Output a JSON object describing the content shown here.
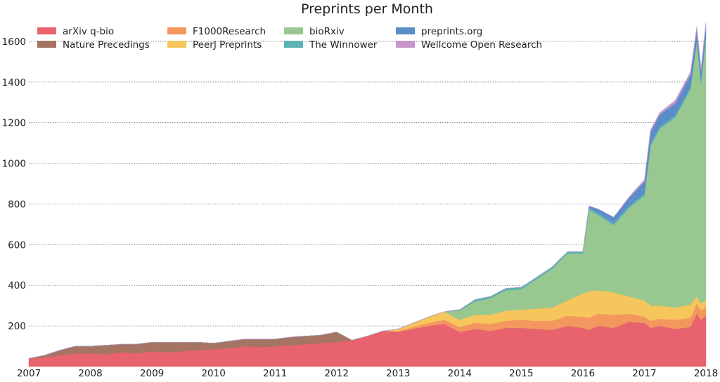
{
  "chart_data": {
    "type": "area",
    "stacked": true,
    "title": "Preprints per Month",
    "xlabel": "",
    "ylabel": "",
    "x_ticks": [
      "2007",
      "2008",
      "2009",
      "2010",
      "2011",
      "2012",
      "2013",
      "2014",
      "2015",
      "2016",
      "2017",
      "2018"
    ],
    "y_ticks": [
      "200",
      "400",
      "600",
      "800",
      "1000",
      "1200",
      "1400",
      "1600"
    ],
    "xlim": [
      2007.0,
      2018.0
    ],
    "ylim": [
      0,
      1700
    ],
    "grid": "horizontal dotted",
    "legend_position": "top-left",
    "x": [
      2007.0,
      2007.25,
      2007.5,
      2007.75,
      2008.0,
      2008.25,
      2008.5,
      2008.75,
      2009.0,
      2009.25,
      2009.5,
      2009.75,
      2010.0,
      2010.25,
      2010.5,
      2010.75,
      2011.0,
      2011.25,
      2011.5,
      2011.75,
      2012.0,
      2012.25,
      2012.5,
      2012.75,
      2013.0,
      2013.25,
      2013.5,
      2013.75,
      2014.0,
      2014.25,
      2014.5,
      2014.75,
      2015.0,
      2015.25,
      2015.5,
      2015.75,
      2016.0,
      2016.1,
      2016.25,
      2016.5,
      2016.75,
      2017.0,
      2017.1,
      2017.25,
      2017.5,
      2017.75,
      2017.85,
      2017.92,
      2018.0
    ],
    "series": [
      {
        "name": "arXiv q-bio",
        "color": "#e8636d",
        "values": [
          40,
          45,
          55,
          65,
          65,
          60,
          70,
          65,
          75,
          70,
          75,
          80,
          85,
          90,
          100,
          95,
          100,
          105,
          110,
          115,
          120,
          130,
          150,
          175,
          170,
          185,
          200,
          210,
          170,
          185,
          175,
          190,
          190,
          185,
          180,
          200,
          190,
          180,
          200,
          190,
          220,
          215,
          190,
          200,
          185,
          195,
          260,
          230,
          250
        ]
      },
      {
        "name": "Nature Precedings",
        "color": "#a57463",
        "values": [
          0,
          10,
          25,
          35,
          35,
          45,
          40,
          45,
          45,
          50,
          45,
          40,
          30,
          35,
          35,
          40,
          35,
          40,
          40,
          40,
          50,
          0,
          0,
          0,
          0,
          0,
          0,
          0,
          0,
          0,
          0,
          0,
          0,
          0,
          0,
          0,
          0,
          0,
          0,
          0,
          0,
          0,
          0,
          0,
          0,
          0,
          0,
          0,
          0
        ]
      },
      {
        "name": "F1000Research",
        "color": "#f4975f",
        "values": [
          0,
          0,
          0,
          0,
          0,
          0,
          0,
          0,
          0,
          0,
          0,
          0,
          0,
          0,
          0,
          0,
          0,
          0,
          0,
          0,
          0,
          0,
          0,
          0,
          5,
          10,
          15,
          20,
          25,
          30,
          35,
          35,
          40,
          40,
          45,
          50,
          55,
          60,
          60,
          65,
          40,
          30,
          35,
          35,
          45,
          45,
          50,
          45,
          45
        ]
      },
      {
        "name": "PeerJ Preprints",
        "color": "#f6c55b",
        "values": [
          0,
          0,
          0,
          0,
          0,
          0,
          0,
          0,
          0,
          0,
          0,
          0,
          0,
          0,
          0,
          0,
          0,
          0,
          0,
          0,
          0,
          0,
          0,
          0,
          10,
          20,
          30,
          40,
          35,
          40,
          45,
          50,
          50,
          60,
          65,
          75,
          115,
          130,
          115,
          110,
          85,
          80,
          75,
          65,
          60,
          65,
          35,
          35,
          30
        ]
      },
      {
        "name": "bioRxiv",
        "color": "#98c78f",
        "values": [
          0,
          0,
          0,
          0,
          0,
          0,
          0,
          0,
          0,
          0,
          0,
          0,
          0,
          0,
          0,
          0,
          0,
          0,
          0,
          0,
          0,
          0,
          0,
          0,
          0,
          0,
          0,
          0,
          45,
          65,
          80,
          100,
          100,
          145,
          190,
          230,
          195,
          400,
          370,
          330,
          435,
          515,
          785,
          870,
          935,
          1060,
          1250,
          1085,
          1290
        ]
      },
      {
        "name": "The Winnower",
        "color": "#5db3b1",
        "values": [
          0,
          0,
          0,
          0,
          0,
          0,
          0,
          0,
          0,
          0,
          0,
          0,
          0,
          0,
          0,
          0,
          0,
          0,
          0,
          0,
          0,
          0,
          0,
          0,
          0,
          0,
          0,
          0,
          5,
          10,
          10,
          10,
          10,
          10,
          10,
          10,
          10,
          10,
          10,
          10,
          10,
          10,
          10,
          10,
          10,
          10,
          10,
          10,
          10
        ]
      },
      {
        "name": "preprints.org",
        "color": "#5b8dc9",
        "values": [
          0,
          0,
          0,
          0,
          0,
          0,
          0,
          0,
          0,
          0,
          0,
          0,
          0,
          0,
          0,
          0,
          0,
          0,
          0,
          0,
          0,
          0,
          0,
          0,
          0,
          0,
          0,
          0,
          0,
          0,
          0,
          0,
          0,
          0,
          0,
          0,
          0,
          10,
          20,
          30,
          40,
          60,
          60,
          60,
          60,
          60,
          55,
          50,
          55
        ]
      },
      {
        "name": "Wellcome Open Research",
        "color": "#c896c9",
        "values": [
          0,
          0,
          0,
          0,
          0,
          0,
          0,
          0,
          0,
          0,
          0,
          0,
          0,
          0,
          0,
          0,
          0,
          0,
          0,
          0,
          0,
          0,
          0,
          0,
          0,
          0,
          0,
          0,
          0,
          0,
          0,
          0,
          0,
          0,
          0,
          0,
          0,
          0,
          0,
          0,
          5,
          10,
          10,
          10,
          15,
          15,
          15,
          15,
          15
        ]
      }
    ]
  }
}
